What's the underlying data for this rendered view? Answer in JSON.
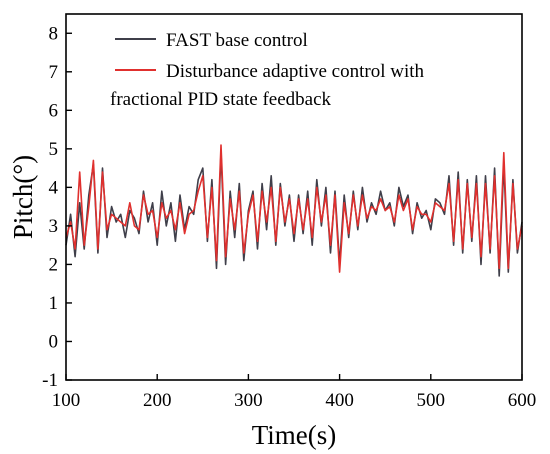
{
  "chart_data": {
    "type": "line",
    "xlabel": "Time(s)",
    "ylabel": "Pitch(°)",
    "xlim": [
      100,
      600
    ],
    "ylim": [
      -1,
      8.5
    ],
    "xticks": [
      100,
      200,
      300,
      400,
      500,
      600
    ],
    "yticks": [
      -1,
      0,
      1,
      2,
      3,
      4,
      5,
      6,
      7,
      8
    ],
    "grid": false,
    "legend_position": "top",
    "series": [
      {
        "name": "FAST base control",
        "color": "#3f3f4a",
        "x": [
          100,
          105,
          110,
          115,
          120,
          125,
          130,
          135,
          140,
          145,
          150,
          155,
          160,
          165,
          170,
          175,
          180,
          185,
          190,
          195,
          200,
          205,
          210,
          215,
          220,
          225,
          230,
          235,
          240,
          245,
          250,
          255,
          260,
          265,
          270,
          275,
          280,
          285,
          290,
          295,
          300,
          305,
          310,
          315,
          320,
          325,
          330,
          335,
          340,
          345,
          350,
          355,
          360,
          365,
          370,
          375,
          380,
          385,
          390,
          395,
          400,
          405,
          410,
          415,
          420,
          425,
          430,
          435,
          440,
          445,
          450,
          455,
          460,
          465,
          470,
          475,
          480,
          485,
          490,
          495,
          500,
          505,
          510,
          515,
          520,
          525,
          530,
          535,
          540,
          545,
          550,
          555,
          560,
          565,
          570,
          575,
          580,
          585,
          590,
          595,
          600
        ],
        "y": [
          2.5,
          3.3,
          2.2,
          3.6,
          2.4,
          3.8,
          4.6,
          2.3,
          4.5,
          2.7,
          3.5,
          3.1,
          3.3,
          2.7,
          3.4,
          3.2,
          2.8,
          3.9,
          3.1,
          3.6,
          2.5,
          3.9,
          3.0,
          3.6,
          2.6,
          3.8,
          2.9,
          3.5,
          3.3,
          4.2,
          4.5,
          2.6,
          4.2,
          1.9,
          4.9,
          2.0,
          3.9,
          2.7,
          4.1,
          2.1,
          3.4,
          3.9,
          2.4,
          4.1,
          2.9,
          4.3,
          2.5,
          4.1,
          3.0,
          3.8,
          2.6,
          3.8,
          2.8,
          3.9,
          2.5,
          4.2,
          3.0,
          4.0,
          2.3,
          3.9,
          2.0,
          3.8,
          2.7,
          3.9,
          2.9,
          4.0,
          3.1,
          3.6,
          3.3,
          3.9,
          3.4,
          3.6,
          3.0,
          4.0,
          3.5,
          3.8,
          2.8,
          3.6,
          3.2,
          3.4,
          2.9,
          3.7,
          3.6,
          3.3,
          4.3,
          2.5,
          4.4,
          2.3,
          4.2,
          2.6,
          4.3,
          2.0,
          4.3,
          2.3,
          4.5,
          1.7,
          4.6,
          1.8,
          4.2,
          2.3,
          3.1
        ]
      },
      {
        "name": "Disturbance adaptive control with fractional PID state feedback",
        "color": "#e0302e",
        "x": [
          100,
          105,
          110,
          115,
          120,
          125,
          130,
          135,
          140,
          145,
          150,
          155,
          160,
          165,
          170,
          175,
          180,
          185,
          190,
          195,
          200,
          205,
          210,
          215,
          220,
          225,
          230,
          235,
          240,
          245,
          250,
          255,
          260,
          265,
          270,
          275,
          280,
          285,
          290,
          295,
          300,
          305,
          310,
          315,
          320,
          325,
          330,
          335,
          340,
          345,
          350,
          355,
          360,
          365,
          370,
          375,
          380,
          385,
          390,
          395,
          400,
          405,
          410,
          415,
          420,
          425,
          430,
          435,
          440,
          445,
          450,
          455,
          460,
          465,
          470,
          475,
          480,
          485,
          490,
          495,
          500,
          505,
          510,
          515,
          520,
          525,
          530,
          535,
          540,
          545,
          550,
          555,
          560,
          565,
          570,
          575,
          580,
          585,
          590,
          595,
          600
        ],
        "y": [
          2.7,
          3.1,
          2.4,
          4.4,
          2.5,
          3.5,
          4.7,
          2.4,
          4.4,
          2.9,
          3.3,
          3.2,
          3.1,
          3.0,
          3.6,
          3.0,
          2.9,
          3.8,
          3.3,
          3.4,
          2.7,
          3.6,
          3.2,
          3.4,
          2.9,
          3.6,
          2.8,
          3.3,
          3.4,
          3.9,
          4.3,
          2.7,
          4.0,
          2.1,
          5.1,
          2.2,
          3.7,
          2.9,
          3.9,
          2.3,
          3.3,
          3.8,
          2.6,
          3.9,
          3.1,
          4.0,
          2.6,
          4.0,
          3.1,
          3.7,
          2.8,
          3.7,
          2.9,
          3.7,
          2.7,
          4.0,
          3.1,
          3.8,
          2.5,
          3.8,
          1.8,
          3.6,
          2.8,
          3.8,
          3.0,
          3.8,
          3.2,
          3.5,
          3.4,
          3.7,
          3.4,
          3.5,
          3.1,
          3.8,
          3.4,
          3.7,
          2.9,
          3.5,
          3.3,
          3.3,
          3.1,
          3.6,
          3.5,
          3.4,
          4.1,
          2.6,
          4.2,
          2.4,
          4.1,
          2.7,
          4.1,
          2.2,
          4.1,
          2.4,
          4.3,
          1.9,
          4.9,
          1.9,
          4.1,
          2.4,
          3.0
        ]
      }
    ]
  }
}
